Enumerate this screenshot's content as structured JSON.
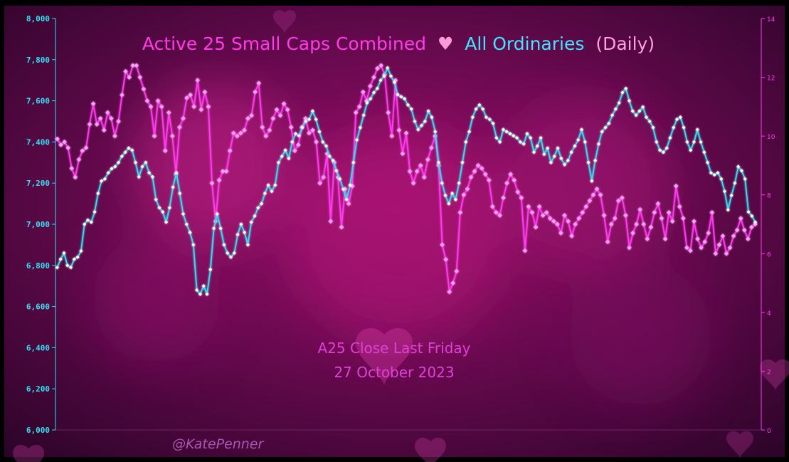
{
  "title": {
    "part1": "Active 25 Small Caps Combined",
    "heart": "♥",
    "part2": "All Ordinaries",
    "part3": "(Daily)"
  },
  "annotation": {
    "line1": "A25 Close Last Friday",
    "line2": "27 October 2023"
  },
  "watermark": "@KatePenner",
  "colors": {
    "all_ords": "#33e0f0",
    "a25": "#ff3bf0",
    "a25_marker": "#ff9ef6",
    "title_a25": "#ff3be8",
    "title_heart": "#ff9ad8",
    "title_all_ords": "#44e4ff",
    "title_daily": "#ff9ee0",
    "annotation": "#e040d8"
  },
  "chart_data": {
    "type": "line",
    "title": "Active 25 Small Caps Combined ♥ All Ordinaries (Daily)",
    "left_axis": {
      "min": 6000,
      "max": 8000,
      "ticks": [
        "6,000",
        "6,200",
        "6,400",
        "6,600",
        "6,800",
        "7,000",
        "7,200",
        "7,400",
        "7,600",
        "7,800",
        "8,000"
      ]
    },
    "right_axis": {
      "min": 0,
      "max": 14,
      "ticks": [
        "0",
        "2",
        "4",
        "6",
        "8",
        "10",
        "12",
        "14"
      ]
    },
    "grid": false,
    "series": [
      {
        "name": "All Ordinaries",
        "axis": "left",
        "color": "#33e0f0",
        "values": [
          6790,
          6830,
          6860,
          6800,
          6790,
          6830,
          6840,
          6870,
          7000,
          7020,
          7010,
          7060,
          7150,
          7210,
          7220,
          7250,
          7270,
          7280,
          7300,
          7330,
          7350,
          7370,
          7360,
          7300,
          7230,
          7280,
          7300,
          7250,
          7230,
          7120,
          7080,
          7060,
          7010,
          7080,
          7180,
          7250,
          7150,
          7050,
          7000,
          6960,
          6900,
          6680,
          6660,
          6700,
          6660,
          6780,
          6980,
          7050,
          6980,
          6900,
          6860,
          6840,
          6860,
          6950,
          7000,
          6960,
          6900,
          7010,
          7040,
          7080,
          7100,
          7150,
          7190,
          7160,
          7190,
          7300,
          7330,
          7360,
          7320,
          7400,
          7440,
          7430,
          7470,
          7500,
          7510,
          7550,
          7510,
          7450,
          7400,
          7380,
          7330,
          7310,
          7260,
          7220,
          7170,
          7120,
          7190,
          7300,
          7410,
          7470,
          7530,
          7590,
          7610,
          7640,
          7660,
          7700,
          7720,
          7760,
          7720,
          7690,
          7630,
          7620,
          7610,
          7580,
          7560,
          7500,
          7460,
          7480,
          7500,
          7550,
          7520,
          7450,
          7300,
          7200,
          7140,
          7100,
          7150,
          7120,
          7200,
          7300,
          7400,
          7450,
          7520,
          7560,
          7580,
          7560,
          7520,
          7510,
          7490,
          7420,
          7400,
          7460,
          7450,
          7440,
          7430,
          7420,
          7400,
          7390,
          7440,
          7420,
          7350,
          7380,
          7420,
          7340,
          7370,
          7300,
          7330,
          7370,
          7320,
          7290,
          7310,
          7350,
          7380,
          7410,
          7460,
          7400,
          7300,
          7210,
          7310,
          7390,
          7450,
          7470,
          7490,
          7530,
          7560,
          7590,
          7640,
          7660,
          7600,
          7550,
          7530,
          7550,
          7570,
          7520,
          7500,
          7470,
          7400,
          7360,
          7350,
          7370,
          7420,
          7470,
          7510,
          7520,
          7470,
          7400,
          7360,
          7400,
          7460,
          7400,
          7350,
          7300,
          7250,
          7240,
          7250,
          7220,
          7160,
          7070,
          7140,
          7200,
          7280,
          7260,
          7220,
          7060,
          7040,
          7010
        ],
        "markers": true
      },
      {
        "name": "A25",
        "axis": "right",
        "color": "#ff3bf0",
        "values": [
          9.9,
          9.7,
          9.8,
          9.6,
          8.9,
          8.6,
          9.2,
          9.5,
          9.6,
          10.4,
          11.1,
          10.4,
          10.6,
          10.2,
          10.8,
          10.6,
          10.0,
          10.5,
          11.4,
          12.2,
          12.0,
          12.4,
          12.4,
          12.0,
          11.6,
          11.2,
          11.0,
          10.0,
          11.2,
          11.0,
          9.5,
          10.8,
          10.0,
          8.7,
          10.3,
          10.6,
          11.3,
          11.4,
          11.0,
          11.9,
          10.9,
          11.5,
          11.0,
          8.4,
          7.1,
          8.5,
          8.8,
          8.8,
          9.5,
          10.1,
          10.0,
          10.1,
          10.2,
          10.6,
          10.7,
          11.5,
          11.8,
          10.3,
          10.0,
          10.2,
          10.6,
          10.9,
          10.7,
          11.1,
          10.9,
          10.3,
          9.5,
          9.7,
          10.3,
          10.6,
          10.1,
          10.2,
          9.8,
          8.4,
          8.6,
          9.4,
          7.1,
          9.1,
          8.6,
          6.9,
          8.2,
          7.7,
          8.3,
          10.8,
          11.0,
          11.5,
          11.2,
          11.7,
          12.0,
          12.3,
          12.4,
          12.1,
          10.8,
          10.0,
          11.9,
          10.2,
          9.4,
          10.1,
          8.8,
          8.4,
          8.8,
          9.0,
          8.6,
          9.2,
          9.6,
          10.0,
          9.0,
          6.3,
          5.8,
          4.7,
          5.0,
          5.4,
          7.4,
          8.0,
          8.2,
          8.6,
          8.8,
          9.0,
          8.9,
          8.7,
          8.5,
          7.6,
          7.4,
          7.3,
          7.9,
          8.4,
          8.7,
          8.5,
          8.1,
          7.9,
          6.1,
          7.6,
          7.4,
          6.9,
          7.6,
          7.3,
          7.4,
          7.2,
          7.1,
          7.0,
          6.7,
          7.3,
          7.1,
          6.6,
          7.0,
          7.2,
          7.4,
          7.6,
          7.8,
          8.0,
          8.2,
          8.0,
          7.3,
          6.4,
          7.0,
          7.2,
          7.8,
          7.9,
          7.3,
          6.2,
          6.7,
          7.0,
          7.5,
          7.0,
          6.5,
          6.9,
          7.4,
          7.7,
          7.2,
          6.5,
          7.4,
          7.1,
          8.3,
          7.6,
          7.2,
          6.2,
          6.1,
          7.1,
          6.5,
          6.2,
          6.4,
          6.7,
          7.4,
          6.0,
          6.3,
          6.6,
          6.0,
          6.2,
          6.6,
          6.8,
          7.2,
          6.8,
          6.5,
          6.9,
          7.0
        ]
      }
    ]
  }
}
